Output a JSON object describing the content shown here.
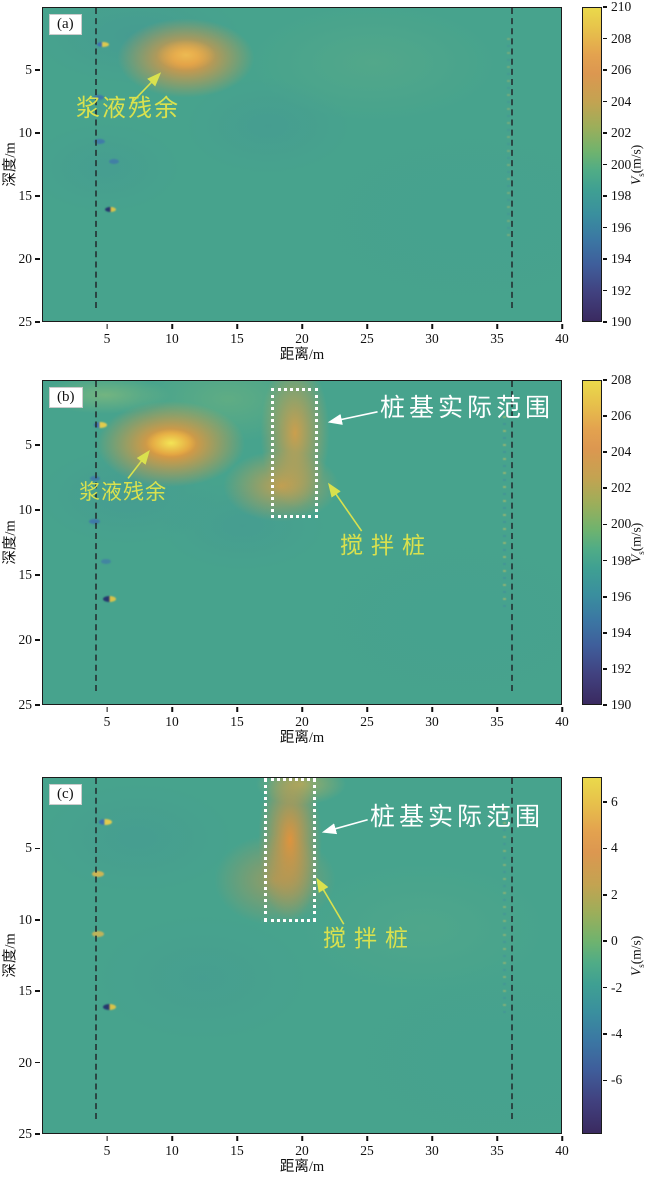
{
  "figure": {
    "axes": {
      "xlabel": "距离/m",
      "ylabel": "深度/m",
      "cbar_v": "V",
      "cbar_sub": "s",
      "cbar_unit": "(m/s)",
      "x_ticks": [
        {
          "label": "5",
          "pct": 12.5
        },
        {
          "label": "10",
          "pct": 25
        },
        {
          "label": "15",
          "pct": 37.5
        },
        {
          "label": "20",
          "pct": 50
        },
        {
          "label": "25",
          "pct": 62.5
        },
        {
          "label": "30",
          "pct": 75
        },
        {
          "label": "35",
          "pct": 87.5
        },
        {
          "label": "40",
          "pct": 100
        }
      ],
      "y_ticks": [
        {
          "label": "5",
          "pct": 20
        },
        {
          "label": "10",
          "pct": 40
        },
        {
          "label": "15",
          "pct": 60
        },
        {
          "label": "20",
          "pct": 80
        },
        {
          "label": "25",
          "pct": 100
        }
      ]
    },
    "colors": {
      "background_teal": "#47a38d",
      "anomaly_orange": "#e4984e",
      "annotation_yellow": "#d9e14e",
      "annotation_white": "#ffffff",
      "colorbar_top": "#ead94b",
      "colorbar_bottom": "#3a2a60"
    },
    "panels": [
      {
        "label": "(a)",
        "annotations": {
          "slurry": "浆液残余"
        },
        "cbar_ticks": [
          {
            "label": "210",
            "pct": 0
          },
          {
            "label": "208",
            "pct": 10
          },
          {
            "label": "206",
            "pct": 20
          },
          {
            "label": "204",
            "pct": 30
          },
          {
            "label": "202",
            "pct": 40
          },
          {
            "label": "200",
            "pct": 50
          },
          {
            "label": "198",
            "pct": 60
          },
          {
            "label": "196",
            "pct": 70
          },
          {
            "label": "194",
            "pct": 80
          },
          {
            "label": "192",
            "pct": 90
          },
          {
            "label": "190",
            "pct": 100
          }
        ]
      },
      {
        "label": "(b)",
        "annotations": {
          "slurry": "浆液残余",
          "pile_range": "桩基实际范围",
          "mixing_pile": "搅拌桩"
        },
        "cbar_ticks": [
          {
            "label": "208",
            "pct": 0
          },
          {
            "label": "206",
            "pct": 11.1
          },
          {
            "label": "204",
            "pct": 22.2
          },
          {
            "label": "202",
            "pct": 33.3
          },
          {
            "label": "200",
            "pct": 44.4
          },
          {
            "label": "198",
            "pct": 55.6
          },
          {
            "label": "196",
            "pct": 66.7
          },
          {
            "label": "194",
            "pct": 77.8
          },
          {
            "label": "192",
            "pct": 88.9
          },
          {
            "label": "190",
            "pct": 100
          }
        ]
      },
      {
        "label": "(c)",
        "annotations": {
          "pile_range": "桩基实际范围",
          "mixing_pile": "搅拌桩"
        },
        "cbar_ticks": [
          {
            "label": "6",
            "pct": 7
          },
          {
            "label": "4",
            "pct": 20
          },
          {
            "label": "2",
            "pct": 33
          },
          {
            "label": "0",
            "pct": 46
          },
          {
            "label": "-2",
            "pct": 59
          },
          {
            "label": "-4",
            "pct": 72
          },
          {
            "label": "-6",
            "pct": 85
          }
        ]
      }
    ]
  },
  "chart_data": [
    {
      "type": "heatmap",
      "panel": "(a)",
      "xlabel": "距离/m",
      "ylabel": "深度/m",
      "x_range": [
        0,
        40
      ],
      "depth_range": [
        0,
        25
      ],
      "x_ticks": [
        5,
        10,
        15,
        20,
        25,
        30,
        35,
        40
      ],
      "y_ticks": [
        5,
        10,
        15,
        20,
        25
      ],
      "colorbar": {
        "label": "Vs(m/s)",
        "min": 190,
        "max": 210,
        "ticks": [
          190,
          192,
          194,
          196,
          198,
          200,
          202,
          204,
          206,
          208,
          210
        ]
      },
      "background_value_mps": 200,
      "features": [
        {
          "name": "浆液残余",
          "type": "high-velocity anomaly",
          "x_m": 11,
          "depth_m": 4,
          "peak_mps": 207
        },
        {
          "name": "dashed borehole line",
          "type": "vertical dashed line",
          "x_m": 4
        },
        {
          "name": "dashed borehole line",
          "type": "vertical dashed line",
          "x_m": 36
        },
        {
          "name": "near-borehole specks",
          "type": "small artifacts",
          "x_m": 5.5,
          "depths_m": [
            3,
            7,
            10.5,
            12,
            16
          ]
        }
      ]
    },
    {
      "type": "heatmap",
      "panel": "(b)",
      "xlabel": "距离/m",
      "ylabel": "深度/m",
      "x_range": [
        0,
        40
      ],
      "depth_range": [
        0,
        25
      ],
      "x_ticks": [
        5,
        10,
        15,
        20,
        25,
        30,
        35,
        40
      ],
      "y_ticks": [
        5,
        10,
        15,
        20,
        25
      ],
      "colorbar": {
        "label": "Vs(m/s)",
        "min": 190,
        "max": 208,
        "ticks": [
          190,
          192,
          194,
          196,
          198,
          200,
          202,
          204,
          206,
          208
        ]
      },
      "background_value_mps": 200,
      "features": [
        {
          "name": "浆液残余",
          "type": "high-velocity anomaly",
          "x_m": 10,
          "depth_m": 4.5,
          "peak_mps": 208
        },
        {
          "name": "搅拌桩",
          "type": "high-velocity column",
          "x_m_range": [
            18,
            22
          ],
          "depth_m_range": [
            0,
            10
          ],
          "peak_mps": 205
        },
        {
          "name": "桩基实际范围",
          "type": "white dotted outline",
          "x_m_range": [
            17.5,
            21.2
          ],
          "depth_m_range": [
            0.5,
            10.3
          ]
        },
        {
          "name": "dashed borehole line",
          "type": "vertical dashed line",
          "x_m": 4
        },
        {
          "name": "dashed borehole line",
          "type": "vertical dashed line",
          "x_m": 36
        },
        {
          "name": "near-borehole specks",
          "type": "small artifacts",
          "x_m": 5.5,
          "depths_m": [
            3,
            10.5,
            13,
            16
          ]
        }
      ]
    },
    {
      "type": "heatmap",
      "panel": "(c)",
      "xlabel": "距离/m",
      "ylabel": "深度/m",
      "x_range": [
        0,
        40
      ],
      "depth_range": [
        0,
        25
      ],
      "x_ticks": [
        5,
        10,
        15,
        20,
        25,
        30,
        35,
        40
      ],
      "y_ticks": [
        5,
        10,
        15,
        20,
        25
      ],
      "colorbar": {
        "label": "Vs(m/s)",
        "min": -8,
        "max": 7,
        "ticks": [
          -6,
          -4,
          -2,
          0,
          2,
          4,
          6
        ]
      },
      "background_value_mps": 0,
      "features": [
        {
          "name": "搅拌桩",
          "type": "positive velocity-difference column",
          "x_m_range": [
            19,
            21.5
          ],
          "depth_m_range": [
            0,
            10
          ],
          "peak_mps": 5
        },
        {
          "name": "桩基实际范围",
          "type": "white dotted outline",
          "x_m_range": [
            17.5,
            21.2
          ],
          "depth_m_range": [
            0,
            10.3
          ]
        },
        {
          "name": "dashed borehole line",
          "type": "vertical dashed line",
          "x_m": 4
        },
        {
          "name": "dashed borehole line",
          "type": "vertical dashed line",
          "x_m": 36
        },
        {
          "name": "near-borehole specks",
          "type": "small artifacts",
          "x_m": 5.5,
          "depths_m": [
            3,
            6.5,
            11,
            16
          ]
        }
      ]
    }
  ]
}
